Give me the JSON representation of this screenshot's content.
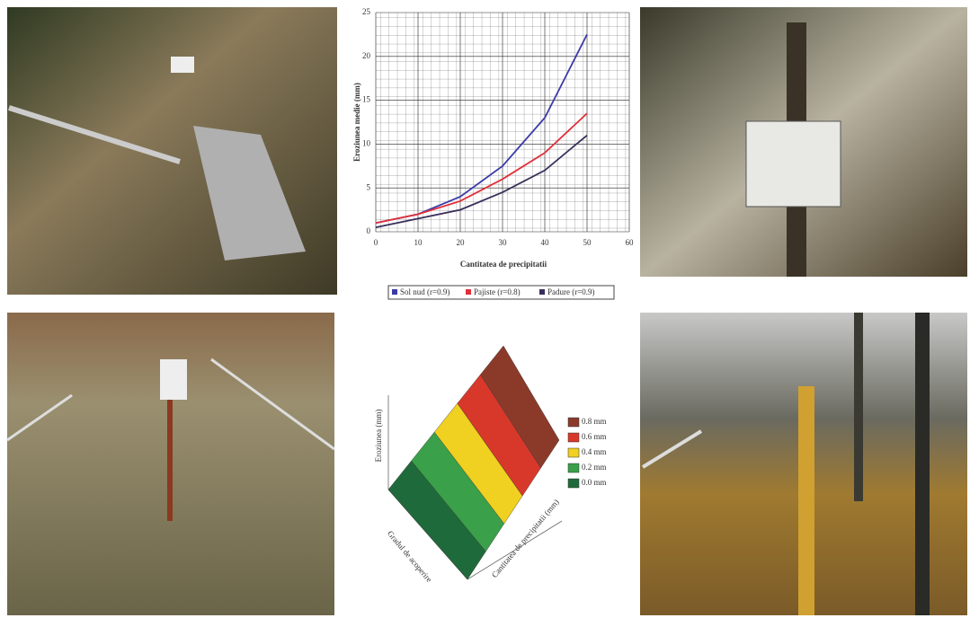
{
  "chart_data": [
    {
      "type": "line",
      "x_label": "Cantitatea de precipitatii",
      "y_label": "Eroziunea medie (mm)",
      "x": [
        0,
        10,
        20,
        30,
        40,
        50
      ],
      "series": [
        {
          "name": "Sol nud (r=0.9)",
          "color": "#3a3aa8",
          "values": [
            1,
            2,
            4,
            7.5,
            13,
            22.5
          ]
        },
        {
          "name": "Pajiste (r=0.8)",
          "color": "#e0303a",
          "values": [
            1,
            2,
            3.5,
            6,
            9,
            13.5
          ]
        },
        {
          "name": "Padure (r=0.9)",
          "color": "#3a2f5a",
          "values": [
            0.5,
            1.5,
            2.5,
            4.5,
            7,
            11
          ]
        }
      ],
      "xlim": [
        0,
        60
      ],
      "xticks": [
        0,
        10,
        20,
        30,
        40,
        50,
        60
      ],
      "ylim": [
        0,
        25
      ],
      "yticks": [
        0,
        5,
        10,
        15,
        20,
        25
      ],
      "grid": true
    },
    {
      "type": "surface",
      "z_label": "Eroziunea (mm)",
      "x_label": "Cantitatea de precipitatii (mm)",
      "y_label": "Gradul de acoperire",
      "legend": [
        {
          "label": "0.8 mm",
          "color": "#8b3a2a"
        },
        {
          "label": "0.6 mm",
          "color": "#d8382a"
        },
        {
          "label": "0.4 mm",
          "color": "#f0d020"
        },
        {
          "label": "0.2 mm",
          "color": "#3aa04a"
        },
        {
          "label": "0.0 mm",
          "color": "#1f6a3a"
        }
      ]
    }
  ]
}
